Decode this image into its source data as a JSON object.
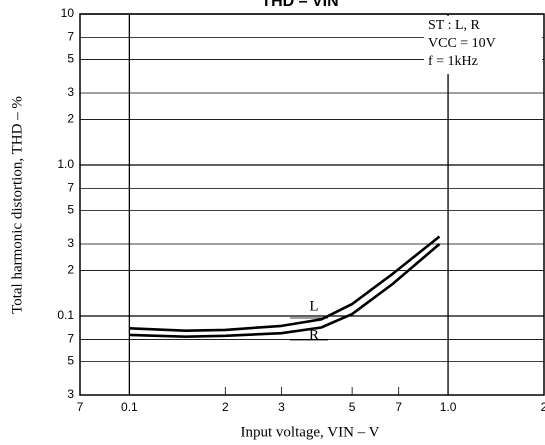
{
  "chart_data": {
    "type": "line",
    "title": "THD – VIN",
    "x_label": "Input voltage, VIN – V",
    "y_label": "Total harmonic distortion, THD – %",
    "annotations": [
      "ST : L, R",
      "VCC = 10V",
      "f = 1kHz"
    ],
    "log_x": true,
    "log_y": true,
    "grid": true,
    "xlim": [
      0.07,
      2
    ],
    "ylim": [
      0.03,
      10
    ],
    "xticks": [
      {
        "value": 0.07,
        "label": "7"
      },
      0.1,
      {
        "value": 0.2,
        "label": "2"
      },
      {
        "value": 0.3,
        "label": "3"
      },
      {
        "value": 0.5,
        "label": "5"
      },
      {
        "value": 0.7,
        "label": "7"
      },
      {
        "value": 1,
        "label": "1.0"
      },
      {
        "value": 2,
        "label": "2"
      }
    ],
    "yticks": [
      10,
      7,
      5,
      3,
      2,
      {
        "value": 1,
        "label": "1.0"
      },
      {
        "value": 0.7,
        "label": "7"
      },
      {
        "value": 0.5,
        "label": "5"
      },
      {
        "value": 0.3,
        "label": "3"
      },
      {
        "value": 0.2,
        "label": "2"
      },
      0.1,
      {
        "value": 0.07,
        "label": "7"
      },
      {
        "value": 0.05,
        "label": "5"
      },
      {
        "value": 0.03,
        "label": "3"
      }
    ],
    "x": [
      0.1,
      0.15,
      0.2,
      0.3,
      0.4,
      0.5,
      0.67,
      0.94
    ],
    "series": [
      {
        "name": "L",
        "color": "#000000",
        "values": [
          0.083,
          0.08,
          0.081,
          0.086,
          0.095,
          0.12,
          0.19,
          0.336
        ]
      },
      {
        "name": "R",
        "color": "#000000",
        "values": [
          0.075,
          0.073,
          0.074,
          0.077,
          0.084,
          0.103,
          0.163,
          0.3
        ]
      }
    ]
  }
}
